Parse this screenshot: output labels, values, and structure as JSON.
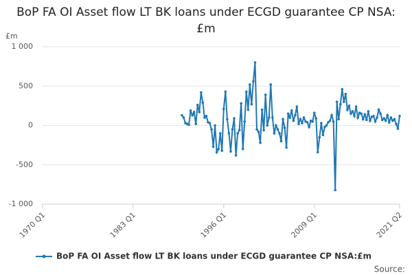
{
  "chart_data": {
    "type": "line",
    "title": "BoP FA OI Asset flow LT BK loans under ECGD guarantee CP NSA:£m",
    "y_label": "£m",
    "source": "Source:",
    "categories": [
      "1970 Q1",
      null,
      null,
      null,
      null,
      null,
      null,
      null,
      null,
      null,
      null,
      null,
      null,
      null,
      null,
      null,
      null,
      null,
      null,
      null,
      null,
      null,
      null,
      null,
      null,
      null,
      null,
      null,
      null,
      null,
      null,
      null,
      null,
      null,
      null,
      null,
      null,
      null,
      null,
      null,
      null,
      null,
      null,
      null,
      null,
      null,
      null,
      null,
      null,
      null,
      null,
      null,
      "1983 Q1",
      null,
      null,
      null,
      null,
      null,
      null,
      null,
      null,
      null,
      null,
      null,
      null,
      null,
      null,
      null,
      null,
      null,
      null,
      null,
      null,
      null,
      null,
      null,
      null,
      null,
      null,
      null,
      null,
      null,
      null,
      null,
      null,
      null,
      null,
      null,
      null,
      null,
      null,
      null,
      null,
      null,
      null,
      null,
      null,
      null,
      null,
      null,
      null,
      null,
      null,
      null,
      "1996 Q1",
      null,
      null,
      null,
      null,
      null,
      null,
      null,
      null,
      null,
      null,
      null,
      null,
      null,
      null,
      null,
      null,
      null,
      null,
      null,
      null,
      null,
      null,
      null,
      null,
      null,
      null,
      null,
      null,
      null,
      null,
      null,
      null,
      null,
      null,
      null,
      null,
      null,
      null,
      null,
      null,
      null,
      null,
      null,
      null,
      null,
      null,
      null,
      null,
      null,
      null,
      null,
      "2009 Q1",
      null,
      null,
      null,
      null,
      null,
      null,
      null,
      null,
      null,
      null,
      null,
      null,
      null,
      null,
      null,
      null,
      null,
      null,
      null,
      null,
      null,
      null,
      null,
      null,
      null,
      null,
      null,
      null,
      null,
      null,
      null,
      null,
      null,
      null,
      null,
      null,
      null,
      null,
      null,
      null,
      null,
      null,
      null,
      null,
      null,
      null,
      null,
      null,
      "2021 Q2"
    ],
    "series": [
      {
        "name": "BoP FA OI Asset flow LT BK loans under ECGD guarantee CP NSA:£m",
        "color": "#1f77b4",
        "values": [
          null,
          null,
          null,
          null,
          null,
          null,
          null,
          null,
          null,
          null,
          null,
          null,
          null,
          null,
          null,
          null,
          null,
          null,
          null,
          null,
          null,
          null,
          null,
          null,
          null,
          null,
          null,
          null,
          null,
          null,
          null,
          null,
          null,
          null,
          null,
          null,
          null,
          null,
          null,
          null,
          null,
          null,
          null,
          null,
          null,
          null,
          null,
          null,
          null,
          null,
          null,
          null,
          null,
          null,
          null,
          null,
          null,
          null,
          null,
          null,
          null,
          null,
          null,
          null,
          null,
          null,
          null,
          null,
          null,
          null,
          null,
          null,
          null,
          null,
          null,
          null,
          null,
          null,
          null,
          null,
          130,
          100,
          30,
          20,
          10,
          190,
          130,
          170,
          20,
          260,
          170,
          420,
          290,
          100,
          120,
          40,
          30,
          -50,
          -270,
          0,
          -340,
          -300,
          -100,
          -320,
          210,
          430,
          80,
          -100,
          -330,
          -50,
          90,
          -380,
          -100,
          -60,
          280,
          -300,
          50,
          430,
          200,
          520,
          270,
          560,
          800,
          -50,
          -80,
          -220,
          200,
          -60,
          390,
          0,
          100,
          520,
          100,
          -100,
          0,
          -50,
          -100,
          -200,
          80,
          -30,
          -280,
          150,
          100,
          190,
          60,
          130,
          240,
          20,
          80,
          30,
          100,
          50,
          40,
          -20,
          60,
          50,
          160,
          90,
          -340,
          -150,
          30,
          -120,
          -20,
          0,
          40,
          60,
          130,
          50,
          -820,
          300,
          80,
          270,
          460,
          300,
          400,
          200,
          250,
          150,
          180,
          120,
          240,
          100,
          160,
          150,
          80,
          140,
          70,
          180,
          60,
          110,
          120,
          50,
          100,
          200,
          150,
          70,
          90,
          60,
          130,
          40,
          100,
          60,
          80,
          20,
          -40,
          120
        ]
      }
    ],
    "ylim": [
      -1000,
      1000
    ],
    "yticks": [
      {
        "value": -1000,
        "label": "-1 000"
      },
      -500,
      0,
      500,
      {
        "value": 1000,
        "label": "1 000"
      }
    ],
    "grid": true,
    "legend": "bottom"
  }
}
